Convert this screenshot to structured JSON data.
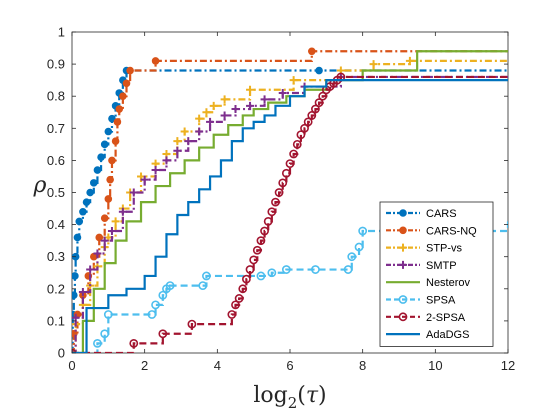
{
  "chart_data": {
    "type": "line",
    "title": "",
    "xlabel": "log_2(τ)",
    "ylabel": "ρ",
    "xlim": [
      0,
      12
    ],
    "ylim": [
      0,
      1
    ],
    "xticks": [
      0,
      2,
      4,
      6,
      8,
      10,
      12
    ],
    "yticks": [
      0,
      0.1,
      0.2,
      0.3,
      0.4,
      0.5,
      0.6,
      0.7,
      0.8,
      0.9,
      1
    ],
    "ytick_labels": [
      "0",
      "0.1",
      "0.2",
      "0.3",
      "0.4",
      "0.5",
      "0.6",
      "0.7",
      "0.8",
      "0.9",
      "1"
    ],
    "grid": false,
    "legend_position": "lower-right",
    "series": [
      {
        "name": "CARS",
        "color": "#0072BD",
        "dash": "dashdot",
        "marker": "filled-circle",
        "x": [
          0,
          0.02,
          0.05,
          0.08,
          0.1,
          0.15,
          0.2,
          0.3,
          0.4,
          0.5,
          0.6,
          0.7,
          0.8,
          0.9,
          1.0,
          1.1,
          1.2,
          1.3,
          1.4,
          1.5,
          6.8,
          12
        ],
        "y": [
          0,
          0.12,
          0.18,
          0.24,
          0.3,
          0.36,
          0.41,
          0.44,
          0.47,
          0.5,
          0.53,
          0.57,
          0.61,
          0.65,
          0.69,
          0.73,
          0.77,
          0.81,
          0.85,
          0.88,
          0.88,
          0.88
        ]
      },
      {
        "name": "CARS-NQ",
        "color": "#D95319",
        "dash": "dashdot",
        "marker": "filled-circle",
        "x": [
          0,
          0.05,
          0.15,
          0.3,
          0.45,
          0.6,
          0.75,
          0.9,
          1.0,
          1.05,
          1.1,
          1.2,
          1.25,
          1.3,
          1.4,
          1.5,
          1.6,
          2.3,
          6.6,
          12
        ],
        "y": [
          0,
          0.06,
          0.12,
          0.18,
          0.24,
          0.3,
          0.36,
          0.42,
          0.48,
          0.54,
          0.6,
          0.66,
          0.72,
          0.76,
          0.8,
          0.84,
          0.88,
          0.91,
          0.94,
          0.94
        ]
      },
      {
        "name": "STP-vs",
        "color": "#EDB120",
        "dash": "dashdot",
        "marker": "plus",
        "x": [
          0,
          0.1,
          0.3,
          0.5,
          0.7,
          0.9,
          1.0,
          1.2,
          1.4,
          1.6,
          1.9,
          2.3,
          2.6,
          2.9,
          3.1,
          3.5,
          3.7,
          3.9,
          4.2,
          4.9,
          6.1,
          7.4,
          8.3,
          9.3,
          12
        ],
        "y": [
          0,
          0.09,
          0.15,
          0.21,
          0.27,
          0.33,
          0.36,
          0.41,
          0.45,
          0.5,
          0.55,
          0.59,
          0.62,
          0.66,
          0.69,
          0.73,
          0.75,
          0.77,
          0.79,
          0.82,
          0.85,
          0.88,
          0.9,
          0.91,
          0.91
        ]
      },
      {
        "name": "SMTP",
        "color": "#7E2F8E",
        "dash": "dashdot",
        "marker": "plus",
        "x": [
          0,
          0.1,
          0.3,
          0.5,
          0.7,
          0.9,
          1.1,
          1.4,
          1.7,
          2.0,
          2.3,
          2.6,
          2.9,
          3.2,
          3.5,
          3.8,
          4.2,
          4.5,
          4.9,
          5.3,
          5.8,
          6.4,
          7.4,
          12
        ],
        "y": [
          0,
          0.11,
          0.19,
          0.26,
          0.31,
          0.35,
          0.38,
          0.44,
          0.5,
          0.54,
          0.57,
          0.6,
          0.63,
          0.66,
          0.69,
          0.72,
          0.74,
          0.76,
          0.77,
          0.79,
          0.81,
          0.83,
          0.86,
          0.86
        ]
      },
      {
        "name": "Nesterov",
        "color": "#77AC30",
        "dash": "solid",
        "marker": "none",
        "x": [
          0,
          0.3,
          0.6,
          0.9,
          1.2,
          1.5,
          1.9,
          2.3,
          2.7,
          3.1,
          3.5,
          3.9,
          4.3,
          4.7,
          5.0,
          5.4,
          5.9,
          6.4,
          7.0,
          8.0,
          9.5,
          12
        ],
        "y": [
          0,
          0.1,
          0.2,
          0.28,
          0.35,
          0.41,
          0.47,
          0.52,
          0.56,
          0.6,
          0.64,
          0.68,
          0.71,
          0.74,
          0.76,
          0.78,
          0.8,
          0.82,
          0.85,
          0.88,
          0.94,
          0.94
        ]
      },
      {
        "name": "SPSA",
        "color": "#4DBEEE",
        "dash": "dashed",
        "marker": "open-circle",
        "x": [
          0,
          0.7,
          0.9,
          1.0,
          2.2,
          2.3,
          2.5,
          2.6,
          2.7,
          3.6,
          3.7,
          5.2,
          5.5,
          5.9,
          6.7,
          7.6,
          7.7,
          7.9,
          8.0,
          12
        ],
        "y": [
          0,
          0.03,
          0.06,
          0.12,
          0.12,
          0.15,
          0.18,
          0.2,
          0.21,
          0.21,
          0.24,
          0.24,
          0.25,
          0.26,
          0.26,
          0.26,
          0.3,
          0.33,
          0.38,
          0.41
        ]
      },
      {
        "name": "2-SPSA",
        "color": "#A2142F",
        "dash": "dashed",
        "marker": "open-circle",
        "x": [
          0,
          1.7,
          2.5,
          3.3,
          4.4,
          4.5,
          4.6,
          4.7,
          4.8,
          4.9,
          5.0,
          5.1,
          5.2,
          5.3,
          5.4,
          5.5,
          5.6,
          5.7,
          5.8,
          5.9,
          6.0,
          6.1,
          6.2,
          6.3,
          6.4,
          6.5,
          6.6,
          6.7,
          6.8,
          6.9,
          7.0,
          7.1,
          7.2,
          7.3,
          7.4,
          12
        ],
        "y": [
          0,
          0.03,
          0.06,
          0.09,
          0.12,
          0.15,
          0.17,
          0.2,
          0.23,
          0.26,
          0.29,
          0.32,
          0.35,
          0.38,
          0.41,
          0.44,
          0.47,
          0.5,
          0.53,
          0.56,
          0.59,
          0.62,
          0.65,
          0.68,
          0.7,
          0.72,
          0.74,
          0.76,
          0.78,
          0.8,
          0.82,
          0.83,
          0.84,
          0.85,
          0.86,
          0.86
        ]
      },
      {
        "name": "AdaDGS",
        "color": "#0072BD",
        "dash": "solid",
        "marker": "none",
        "x": [
          0,
          0.4,
          1.0,
          1.5,
          2.0,
          2.3,
          2.6,
          2.9,
          3.2,
          3.5,
          3.8,
          4.1,
          4.4,
          4.7,
          5.0,
          5.3,
          5.6,
          6.0,
          6.4,
          7.0,
          12
        ],
        "y": [
          0,
          0.14,
          0.18,
          0.2,
          0.24,
          0.3,
          0.37,
          0.43,
          0.47,
          0.51,
          0.55,
          0.6,
          0.66,
          0.7,
          0.72,
          0.74,
          0.77,
          0.8,
          0.83,
          0.85,
          0.85
        ]
      }
    ]
  }
}
